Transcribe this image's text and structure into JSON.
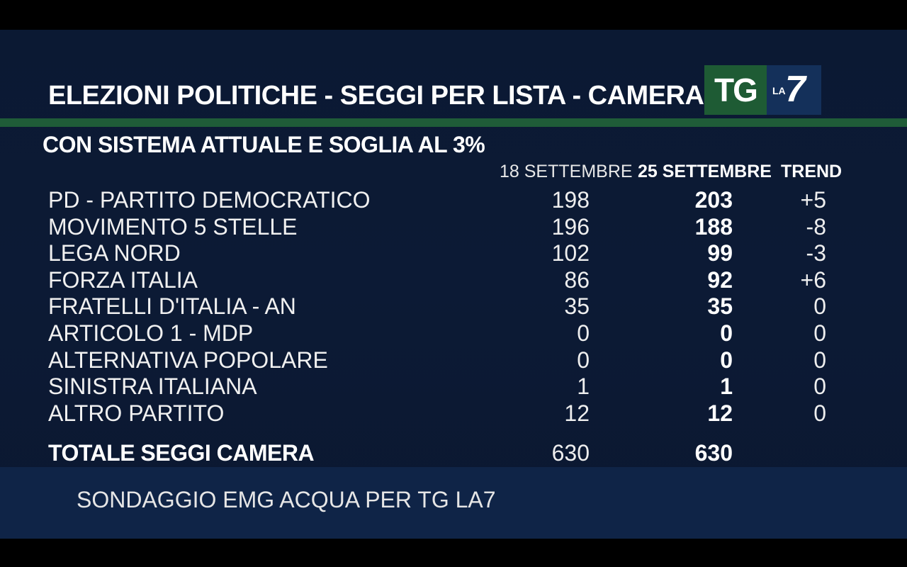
{
  "header": {
    "title": "ELEZIONI POLITICHE - SEGGI  PER  LISTA - CAMERA",
    "subtitle": "CON SISTEMA ATTUALE E SOGLIA AL 3%",
    "logo": {
      "tg": "TG",
      "la": "LA",
      "seven": "7"
    }
  },
  "columns": {
    "date1": "18 SETTEMBRE",
    "date2": "25 SETTEMBRE",
    "trend": "TREND"
  },
  "rows": [
    {
      "party": "PD - PARTITO DEMOCRATICO",
      "v1": "198",
      "v2": "203",
      "trend": "+5"
    },
    {
      "party": "MOVIMENTO 5 STELLE",
      "v1": "196",
      "v2": "188",
      "trend": "-8"
    },
    {
      "party": "LEGA NORD",
      "v1": "102",
      "v2": "99",
      "trend": "-3"
    },
    {
      "party": "FORZA ITALIA",
      "v1": "86",
      "v2": "92",
      "trend": "+6"
    },
    {
      "party": "FRATELLI D'ITALIA - AN",
      "v1": "35",
      "v2": "35",
      "trend": "0"
    },
    {
      "party": "ARTICOLO 1  - MDP",
      "v1": "0",
      "v2": "0",
      "trend": "0"
    },
    {
      "party": "ALTERNATIVA POPOLARE",
      "v1": "0",
      "v2": "0",
      "trend": "0"
    },
    {
      "party": "SINISTRA ITALIANA",
      "v1": "1",
      "v2": "1",
      "trend": "0"
    },
    {
      "party": "ALTRO PARTITO",
      "v1": "12",
      "v2": "12",
      "trend": "0"
    }
  ],
  "total": {
    "label": "TOTALE SEGGI CAMERA",
    "v1": "630",
    "v2": "630"
  },
  "footer": {
    "source": "SONDAGGIO EMG ACQUA PER TG LA7"
  },
  "colors": {
    "background": "#0c1a35",
    "accent_green": "#1f5c38",
    "footer_band": "#0f2447"
  }
}
